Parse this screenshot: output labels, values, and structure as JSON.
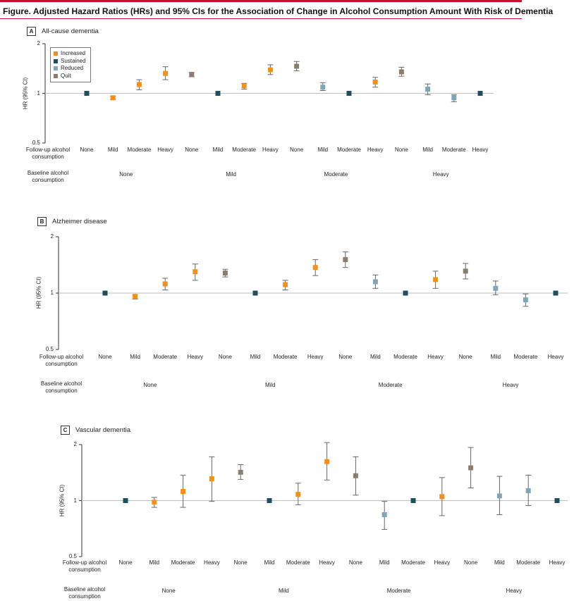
{
  "figure": {
    "title": "Figure. Adjusted Hazard Ratios (HRs) and 95% CIs for the Association of Change in Alcohol Consumption Amount With Risk of Dementia",
    "y_axis_label": "HR (95% CI)",
    "followup_row_label": "Follow-up alcohol consumption",
    "baseline_row_label": "Baseline alcohol consumption"
  },
  "legend": [
    {
      "label": "Increased",
      "color": "#f0901e"
    },
    {
      "label": "Sustained",
      "color": "#1f4e5f"
    },
    {
      "label": "Reduced",
      "color": "#7fa6b8"
    },
    {
      "label": "Quit",
      "color": "#8a7d6e"
    }
  ],
  "colors": {
    "Increased": "#f0901e",
    "Sustained": "#1f4e5f",
    "Reduced": "#7fa6b8",
    "Quit": "#8a7d6e"
  },
  "chart_data": [
    {
      "type": "scatter",
      "panel_letter": "A",
      "title": "All-cause dementia",
      "ylabel": "HR (95% CI)",
      "y_scale": "log",
      "ylim": [
        0.5,
        2
      ],
      "yticks": [
        0.5,
        1,
        2
      ],
      "reference_line": 1,
      "grid": false,
      "legend": true,
      "legend_position": "top-left",
      "baseline_groups": [
        "None",
        "Mild",
        "Moderate",
        "Heavy"
      ],
      "points": [
        {
          "baseline": "None",
          "followup": "None",
          "category": "Sustained",
          "hr": 1.0,
          "lo": 1.0,
          "hi": 1.0
        },
        {
          "baseline": "None",
          "followup": "Mild",
          "category": "Increased",
          "hr": 0.94,
          "lo": 0.92,
          "hi": 0.96
        },
        {
          "baseline": "None",
          "followup": "Moderate",
          "category": "Increased",
          "hr": 1.13,
          "lo": 1.05,
          "hi": 1.21
        },
        {
          "baseline": "None",
          "followup": "Heavy",
          "category": "Increased",
          "hr": 1.32,
          "lo": 1.21,
          "hi": 1.45
        },
        {
          "baseline": "Mild",
          "followup": "None",
          "category": "Quit",
          "hr": 1.3,
          "lo": 1.26,
          "hi": 1.34
        },
        {
          "baseline": "Mild",
          "followup": "Mild",
          "category": "Sustained",
          "hr": 1.0,
          "lo": 1.0,
          "hi": 1.0
        },
        {
          "baseline": "Mild",
          "followup": "Moderate",
          "category": "Increased",
          "hr": 1.11,
          "lo": 1.06,
          "hi": 1.15
        },
        {
          "baseline": "Mild",
          "followup": "Heavy",
          "category": "Increased",
          "hr": 1.39,
          "lo": 1.3,
          "hi": 1.49
        },
        {
          "baseline": "Moderate",
          "followup": "None",
          "category": "Quit",
          "hr": 1.46,
          "lo": 1.37,
          "hi": 1.56
        },
        {
          "baseline": "Moderate",
          "followup": "Mild",
          "category": "Reduced",
          "hr": 1.09,
          "lo": 1.04,
          "hi": 1.16
        },
        {
          "baseline": "Moderate",
          "followup": "Moderate",
          "category": "Sustained",
          "hr": 1.0,
          "lo": 1.0,
          "hi": 1.0
        },
        {
          "baseline": "Moderate",
          "followup": "Heavy",
          "category": "Increased",
          "hr": 1.17,
          "lo": 1.09,
          "hi": 1.25
        },
        {
          "baseline": "Heavy",
          "followup": "None",
          "category": "Quit",
          "hr": 1.35,
          "lo": 1.27,
          "hi": 1.44
        },
        {
          "baseline": "Heavy",
          "followup": "Mild",
          "category": "Reduced",
          "hr": 1.06,
          "lo": 0.98,
          "hi": 1.14
        },
        {
          "baseline": "Heavy",
          "followup": "Moderate",
          "category": "Reduced",
          "hr": 0.94,
          "lo": 0.89,
          "hi": 0.98
        },
        {
          "baseline": "Heavy",
          "followup": "Heavy",
          "category": "Sustained",
          "hr": 1.0,
          "lo": 1.0,
          "hi": 1.0
        }
      ]
    },
    {
      "type": "scatter",
      "panel_letter": "B",
      "title": "Alzheimer disease",
      "ylabel": "HR (95% CI)",
      "y_scale": "log",
      "ylim": [
        0.5,
        2
      ],
      "yticks": [
        0.5,
        1,
        2
      ],
      "reference_line": 1,
      "grid": false,
      "legend": false,
      "baseline_groups": [
        "None",
        "Mild",
        "Moderate",
        "Heavy"
      ],
      "points": [
        {
          "baseline": "None",
          "followup": "None",
          "category": "Sustained",
          "hr": 1.0,
          "lo": 1.0,
          "hi": 1.0
        },
        {
          "baseline": "None",
          "followup": "Mild",
          "category": "Increased",
          "hr": 0.96,
          "lo": 0.93,
          "hi": 0.98
        },
        {
          "baseline": "None",
          "followup": "Moderate",
          "category": "Increased",
          "hr": 1.12,
          "lo": 1.04,
          "hi": 1.2
        },
        {
          "baseline": "None",
          "followup": "Heavy",
          "category": "Increased",
          "hr": 1.3,
          "lo": 1.17,
          "hi": 1.43
        },
        {
          "baseline": "Mild",
          "followup": "None",
          "category": "Quit",
          "hr": 1.28,
          "lo": 1.22,
          "hi": 1.34
        },
        {
          "baseline": "Mild",
          "followup": "Mild",
          "category": "Sustained",
          "hr": 1.0,
          "lo": 1.0,
          "hi": 1.0
        },
        {
          "baseline": "Mild",
          "followup": "Moderate",
          "category": "Increased",
          "hr": 1.11,
          "lo": 1.04,
          "hi": 1.17
        },
        {
          "baseline": "Mild",
          "followup": "Heavy",
          "category": "Increased",
          "hr": 1.37,
          "lo": 1.24,
          "hi": 1.51
        },
        {
          "baseline": "Moderate",
          "followup": "None",
          "category": "Quit",
          "hr": 1.51,
          "lo": 1.37,
          "hi": 1.66
        },
        {
          "baseline": "Moderate",
          "followup": "Mild",
          "category": "Reduced",
          "hr": 1.15,
          "lo": 1.06,
          "hi": 1.25
        },
        {
          "baseline": "Moderate",
          "followup": "Moderate",
          "category": "Sustained",
          "hr": 1.0,
          "lo": 1.0,
          "hi": 1.0
        },
        {
          "baseline": "Moderate",
          "followup": "Heavy",
          "category": "Increased",
          "hr": 1.18,
          "lo": 1.06,
          "hi": 1.31
        },
        {
          "baseline": "Heavy",
          "followup": "None",
          "category": "Quit",
          "hr": 1.31,
          "lo": 1.19,
          "hi": 1.44
        },
        {
          "baseline": "Heavy",
          "followup": "Mild",
          "category": "Reduced",
          "hr": 1.06,
          "lo": 0.98,
          "hi": 1.16
        },
        {
          "baseline": "Heavy",
          "followup": "Moderate",
          "category": "Reduced",
          "hr": 0.92,
          "lo": 0.85,
          "hi": 0.99
        },
        {
          "baseline": "Heavy",
          "followup": "Heavy",
          "category": "Sustained",
          "hr": 1.0,
          "lo": 1.0,
          "hi": 1.0
        }
      ]
    },
    {
      "type": "scatter",
      "panel_letter": "C",
      "title": "Vascular dementia",
      "ylabel": "HR (95% CI)",
      "y_scale": "log",
      "ylim": [
        0.5,
        2
      ],
      "yticks": [
        0.5,
        1,
        2
      ],
      "reference_line": 1,
      "grid": false,
      "legend": false,
      "baseline_groups": [
        "None",
        "Mild",
        "Moderate",
        "Heavy"
      ],
      "points": [
        {
          "baseline": "None",
          "followup": "None",
          "category": "Sustained",
          "hr": 1.0,
          "lo": 1.0,
          "hi": 1.0
        },
        {
          "baseline": "None",
          "followup": "Mild",
          "category": "Increased",
          "hr": 0.98,
          "lo": 0.92,
          "hi": 1.04
        },
        {
          "baseline": "None",
          "followup": "Moderate",
          "category": "Increased",
          "hr": 1.12,
          "lo": 0.92,
          "hi": 1.37
        },
        {
          "baseline": "None",
          "followup": "Heavy",
          "category": "Increased",
          "hr": 1.31,
          "lo": 0.99,
          "hi": 1.72
        },
        {
          "baseline": "Mild",
          "followup": "None",
          "category": "Quit",
          "hr": 1.42,
          "lo": 1.3,
          "hi": 1.56
        },
        {
          "baseline": "Mild",
          "followup": "Mild",
          "category": "Sustained",
          "hr": 1.0,
          "lo": 1.0,
          "hi": 1.0
        },
        {
          "baseline": "Mild",
          "followup": "Moderate",
          "category": "Increased",
          "hr": 1.08,
          "lo": 0.95,
          "hi": 1.24
        },
        {
          "baseline": "Mild",
          "followup": "Heavy",
          "category": "Increased",
          "hr": 1.62,
          "lo": 1.29,
          "hi": 2.05
        },
        {
          "baseline": "Moderate",
          "followup": "None",
          "category": "Quit",
          "hr": 1.36,
          "lo": 1.07,
          "hi": 1.72
        },
        {
          "baseline": "Moderate",
          "followup": "Mild",
          "category": "Reduced",
          "hr": 0.84,
          "lo": 0.7,
          "hi": 0.99
        },
        {
          "baseline": "Moderate",
          "followup": "Moderate",
          "category": "Sustained",
          "hr": 1.0,
          "lo": 1.0,
          "hi": 1.0
        },
        {
          "baseline": "Moderate",
          "followup": "Heavy",
          "category": "Increased",
          "hr": 1.05,
          "lo": 0.83,
          "hi": 1.33
        },
        {
          "baseline": "Heavy",
          "followup": "None",
          "category": "Quit",
          "hr": 1.5,
          "lo": 1.17,
          "hi": 1.93
        },
        {
          "baseline": "Heavy",
          "followup": "Mild",
          "category": "Reduced",
          "hr": 1.06,
          "lo": 0.84,
          "hi": 1.35
        },
        {
          "baseline": "Heavy",
          "followup": "Moderate",
          "category": "Reduced",
          "hr": 1.13,
          "lo": 0.94,
          "hi": 1.37
        },
        {
          "baseline": "Heavy",
          "followup": "Heavy",
          "category": "Sustained",
          "hr": 1.0,
          "lo": 1.0,
          "hi": 1.0
        }
      ]
    }
  ]
}
